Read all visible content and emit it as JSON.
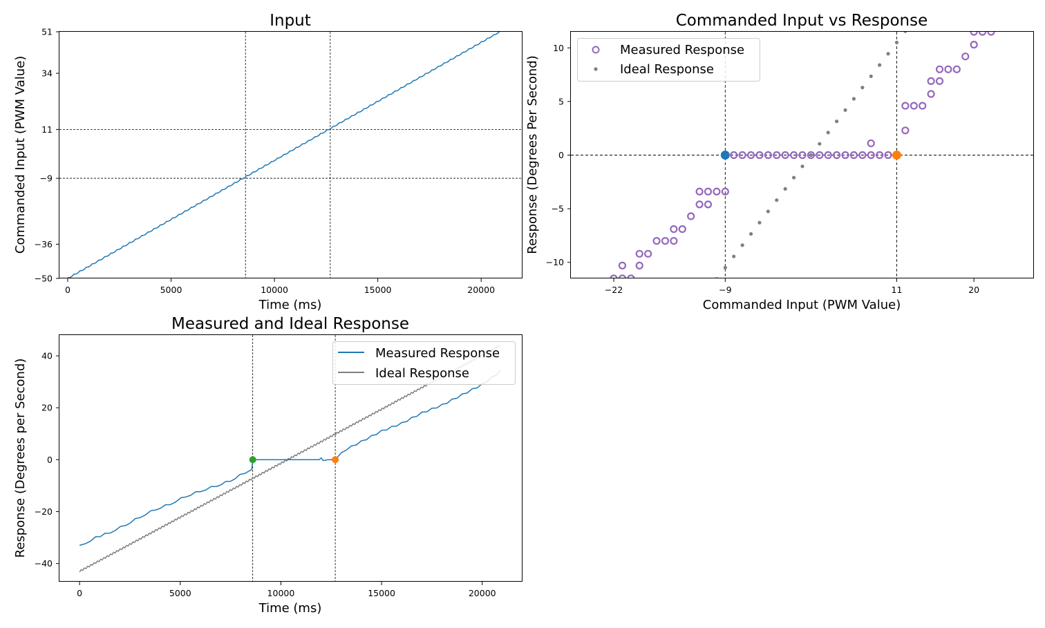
{
  "chart_data": [
    {
      "type": "line",
      "title": "Input",
      "xlabel": "Time (ms)",
      "ylabel": "Commanded Input (PWM Value)",
      "xlim": [
        -400,
        22000
      ],
      "ylim": [
        -50,
        51
      ],
      "xticks": [
        0,
        5000,
        10000,
        15000,
        20000
      ],
      "yticks": [
        -50,
        -36,
        -9,
        11,
        34,
        51
      ],
      "reference_lines": {
        "vertical": [
          8600,
          12700
        ],
        "horizontal": [
          -9,
          11
        ]
      },
      "series": [
        {
          "color": "#1f77b4",
          "x": [
            0,
            20900
          ],
          "y": [
            -50,
            51
          ]
        }
      ]
    },
    {
      "type": "scatter",
      "title": "Commanded Input vs Response",
      "xlabel": "Commanded Input (PWM Value)",
      "ylabel": "Response (Degrees Per Second)",
      "xlim": [
        -27,
        27
      ],
      "ylim": [
        -11.5,
        11.5
      ],
      "xticks": [
        -22,
        -9,
        11,
        20
      ],
      "yticks": [
        -10,
        -5,
        0,
        5,
        10
      ],
      "legend": "top-left",
      "reference_lines": {
        "vertical": [
          -9,
          11
        ],
        "horizontal": [
          0
        ]
      },
      "series": [
        {
          "name": "Measured Response",
          "marker": "hollow-circle",
          "color": "#9467bd",
          "points": [
            [
              -22,
              -11.5
            ],
            [
              -21,
              -10.3
            ],
            [
              -21,
              -11.5
            ],
            [
              -20,
              -11.5
            ],
            [
              -19,
              -10.3
            ],
            [
              -19,
              -9.2
            ],
            [
              -18,
              -9.2
            ],
            [
              -17,
              -8.0
            ],
            [
              -16,
              -8.0
            ],
            [
              -15,
              -8.0
            ],
            [
              -15,
              -6.9
            ],
            [
              -14,
              -6.9
            ],
            [
              -13,
              -5.7
            ],
            [
              -12,
              -4.6
            ],
            [
              -12,
              -3.4
            ],
            [
              -11,
              -4.6
            ],
            [
              -11,
              -3.4
            ],
            [
              -10,
              -3.4
            ],
            [
              -9,
              -3.4
            ],
            [
              -8,
              0
            ],
            [
              -7,
              0
            ],
            [
              -6,
              0
            ],
            [
              -5,
              0
            ],
            [
              -4,
              0
            ],
            [
              -3,
              0
            ],
            [
              -2,
              0
            ],
            [
              -1,
              0
            ],
            [
              0,
              0
            ],
            [
              1,
              0
            ],
            [
              2,
              0
            ],
            [
              3,
              0
            ],
            [
              4,
              0
            ],
            [
              5,
              0
            ],
            [
              6,
              0
            ],
            [
              7,
              0
            ],
            [
              8,
              0
            ],
            [
              8,
              1.1
            ],
            [
              9,
              0
            ],
            [
              10,
              0
            ],
            [
              12,
              2.3
            ],
            [
              12,
              4.6
            ],
            [
              13,
              4.6
            ],
            [
              14,
              4.6
            ],
            [
              15,
              5.7
            ],
            [
              15,
              6.9
            ],
            [
              16,
              6.9
            ],
            [
              16,
              8.0
            ],
            [
              17,
              8.0
            ],
            [
              18,
              8.0
            ],
            [
              19,
              9.2
            ],
            [
              20,
              10.3
            ],
            [
              20,
              11.5
            ],
            [
              21,
              11.5
            ],
            [
              22,
              11.5
            ]
          ]
        },
        {
          "name": "Ideal Response",
          "marker": "dot",
          "color": "#7f7f7f",
          "slope": 1.05,
          "x_from": -13,
          "x_to": 14
        },
        {
          "marker": "large-dot",
          "color": "#1f77b4",
          "points": [
            [
              -9,
              0
            ]
          ]
        },
        {
          "marker": "large-dot",
          "color": "#ff7f0e",
          "points": [
            [
              11,
              0
            ]
          ]
        }
      ]
    },
    {
      "type": "line",
      "title": "Measured and Ideal Response",
      "xlabel": "Time (ms)",
      "ylabel": "Response (Degrees per Second)",
      "xlim": [
        -1000,
        22000
      ],
      "ylim": [
        -47,
        48
      ],
      "xticks": [
        0,
        5000,
        10000,
        15000,
        20000
      ],
      "yticks": [
        -40,
        -20,
        0,
        20,
        40
      ],
      "legend": "top-right",
      "reference_lines": {
        "vertical": [
          8600,
          12700
        ]
      },
      "series": [
        {
          "name": "Measured Response",
          "color": "#1f77b4",
          "x": [
            0,
            300,
            800,
            1500,
            2300,
            3000,
            3800,
            4500,
            5300,
            6000,
            6800,
            7500,
            8200,
            8550,
            8600,
            9500,
            11000,
            11900,
            12000,
            12100,
            12600,
            12700,
            13000,
            14000,
            15000,
            16000,
            17000,
            18000,
            19000,
            20000,
            20900
          ],
          "y": [
            -33,
            -32,
            -30,
            -28,
            -25,
            -22,
            -19,
            -17,
            -14,
            -12,
            -10,
            -8,
            -5,
            -3.5,
            0,
            0,
            0,
            0,
            1,
            0,
            0,
            0,
            3,
            7,
            11,
            14,
            18,
            21,
            25,
            29,
            34
          ]
        },
        {
          "name": "Ideal Response",
          "color": "#7f7f7f",
          "x": [
            0,
            20900
          ],
          "y": [
            -43,
            44
          ]
        },
        {
          "marker": "large-dot",
          "color": "#2ca02c",
          "points": [
            [
              8600,
              0
            ]
          ]
        },
        {
          "marker": "large-dot",
          "color": "#ff7f0e",
          "points": [
            [
              12700,
              0
            ]
          ]
        }
      ]
    }
  ]
}
